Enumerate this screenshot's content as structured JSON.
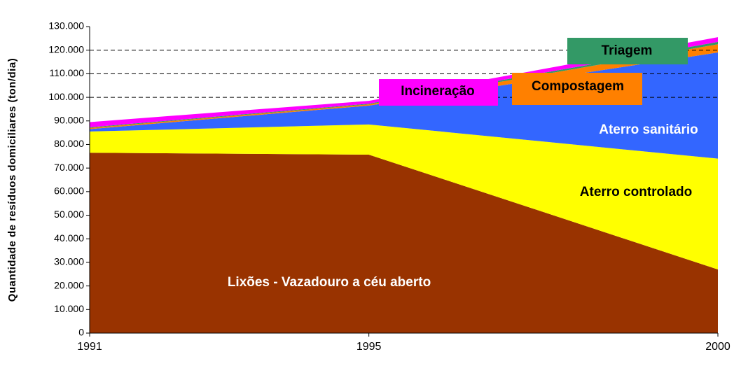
{
  "chart_data": {
    "type": "area",
    "stacked": true,
    "y_label": "Quantidade de resíduos domiciliares (ton/dia)",
    "x": [
      1991,
      1995,
      2000
    ],
    "xlim": [
      1991,
      2000
    ],
    "xticks": [
      1991,
      1995,
      2000
    ],
    "ylim": [
      0,
      130000
    ],
    "yticks": [
      {
        "value": 0,
        "label": "0"
      },
      {
        "value": 10000,
        "label": "10.000"
      },
      {
        "value": 20000,
        "label": "20.000"
      },
      {
        "value": 30000,
        "label": "30.000"
      },
      {
        "value": 40000,
        "label": "40.000"
      },
      {
        "value": 50000,
        "label": "50.000"
      },
      {
        "value": 60000,
        "label": "60.000"
      },
      {
        "value": 70000,
        "label": "70.000"
      },
      {
        "value": 80000,
        "label": "80.000"
      },
      {
        "value": 90000,
        "label": "90.000"
      },
      {
        "value": 100000,
        "label": "100.000"
      },
      {
        "value": 110000,
        "label": "110.000"
      },
      {
        "value": 120000,
        "label": "120.000"
      },
      {
        "value": 130000,
        "label": "130.000"
      }
    ],
    "grid_lines": [
      100000,
      110000,
      120000
    ],
    "series": [
      {
        "name": "Lixões - Vazadouro a céu aberto",
        "color": "#993300",
        "values": [
          76500,
          75700,
          27000
        ]
      },
      {
        "name": "Aterro controlado",
        "color": "#ffff00",
        "values": [
          9000,
          12800,
          47000
        ]
      },
      {
        "name": "Aterro sanitário",
        "color": "#3366ff",
        "values": [
          1000,
          8000,
          45000
        ]
      },
      {
        "name": "Compostagem",
        "color": "#ff8000",
        "values": [
          500,
          500,
          3500
        ]
      },
      {
        "name": "Triagem",
        "color": "#339966",
        "values": [
          300,
          300,
          1000
        ]
      },
      {
        "name": "Incineração",
        "color": "#ff00ff",
        "values": [
          2200,
          1200,
          2000
        ]
      }
    ]
  }
}
